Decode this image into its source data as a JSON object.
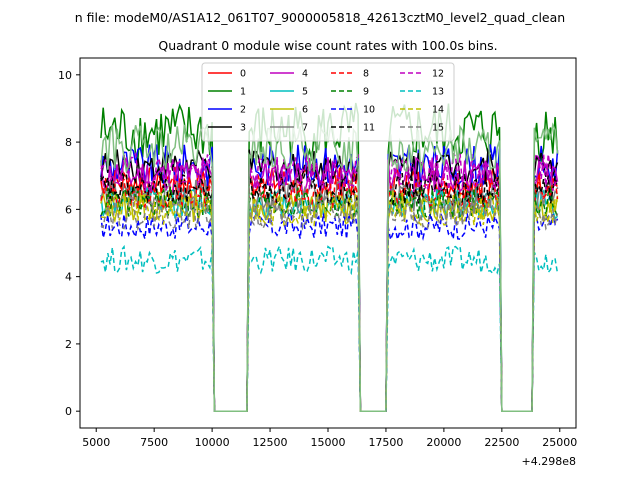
{
  "figure": {
    "suptitle": "n file: modeM0/AS1A12_061T07_9000005818_42613cztM0_level2_quad_clean",
    "title": "Quadrant 0 module wise count rates with 100.0s bins.",
    "x_offset_label": "+4.298e8"
  },
  "chart_data": {
    "type": "line",
    "title": "Quadrant 0 module wise count rates with 100.0s bins.",
    "xlabel": "",
    "ylabel": "",
    "x_offset": 429800000,
    "xlim": [
      4300,
      25700
    ],
    "ylim": [
      -0.5,
      10.5
    ],
    "xticks": [
      5000,
      7500,
      10000,
      12500,
      15000,
      17500,
      20000,
      22500,
      25000
    ],
    "xtick_labels": [
      "5000",
      "7500",
      "10000",
      "12500",
      "15000",
      "17500",
      "20000",
      "22500",
      "25000"
    ],
    "yticks": [
      0,
      2,
      4,
      6,
      8,
      10
    ],
    "ytick_labels": [
      "0",
      "2",
      "4",
      "6",
      "8",
      "10"
    ],
    "grid": false,
    "legend_placement": "top-center",
    "legend_columns": 4,
    "x_start": 5200,
    "x_end": 24900,
    "bin_width": 100,
    "gaps": [
      [
        10000,
        11600
      ],
      [
        16300,
        17600
      ],
      [
        22400,
        23900
      ]
    ],
    "series": [
      {
        "name": "0",
        "color": "#ff0000",
        "dash": "solid",
        "mean": 6.8,
        "spread": 0.3
      },
      {
        "name": "1",
        "color": "#008000",
        "dash": "solid",
        "mean": 8.3,
        "spread": 0.55
      },
      {
        "name": "2",
        "color": "#0000ff",
        "dash": "solid",
        "mean": 7.3,
        "spread": 0.4
      },
      {
        "name": "3",
        "color": "#000000",
        "dash": "solid",
        "mean": 7.3,
        "spread": 0.3
      },
      {
        "name": "4",
        "color": "#bf00bf",
        "dash": "solid",
        "mean": 7.0,
        "spread": 0.35
      },
      {
        "name": "5",
        "color": "#00bfbf",
        "dash": "solid",
        "mean": 6.2,
        "spread": 0.3
      },
      {
        "name": "6",
        "color": "#bfbf00",
        "dash": "solid",
        "mean": 6.1,
        "spread": 0.3
      },
      {
        "name": "7",
        "color": "#808080",
        "dash": "solid",
        "mean": 6.4,
        "spread": 0.3
      },
      {
        "name": "8",
        "color": "#ff0000",
        "dash": "dashed",
        "mean": 6.5,
        "spread": 0.3
      },
      {
        "name": "9",
        "color": "#008000",
        "dash": "dashed",
        "mean": 6.2,
        "spread": 0.3
      },
      {
        "name": "10",
        "color": "#0000ff",
        "dash": "dashed",
        "mean": 5.5,
        "spread": 0.25
      },
      {
        "name": "11",
        "color": "#000000",
        "dash": "dashed",
        "mean": 6.6,
        "spread": 0.3
      },
      {
        "name": "12",
        "color": "#bf00bf",
        "dash": "dashed",
        "mean": 7.1,
        "spread": 0.35
      },
      {
        "name": "13",
        "color": "#00bfbf",
        "dash": "dashed",
        "mean": 4.5,
        "spread": 0.25
      },
      {
        "name": "14",
        "color": "#bfbf00",
        "dash": "dashed",
        "mean": 6.0,
        "spread": 0.3
      },
      {
        "name": "15",
        "color": "#808080",
        "dash": "dashed",
        "mean": 5.9,
        "spread": 0.3
      }
    ],
    "extra_unlabeled_series": [
      {
        "color": "#80bf80",
        "dash": "solid",
        "mean": 7.8,
        "spread": 0.45
      }
    ]
  }
}
